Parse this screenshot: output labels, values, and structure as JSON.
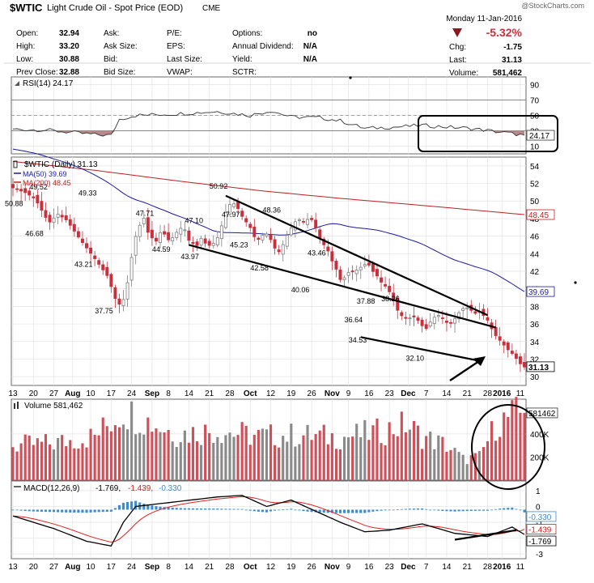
{
  "header": {
    "symbol": "$WTIC",
    "name": "Light Crude Oil - Spot Price (EOD)",
    "exchange": "CME",
    "watermark": "@StockCharts.com",
    "date": "Monday 11-Jan-2016",
    "change_pct": "-5.32%",
    "quote": [
      [
        "Open:",
        "32.94",
        "Ask:",
        "",
        "P/E:",
        "",
        "Options:",
        "no"
      ],
      [
        "High:",
        "33.20",
        "Ask Size:",
        "",
        "EPS:",
        "",
        "Annual Dividend:",
        "N/A"
      ],
      [
        "Low:",
        "30.88",
        "Bid:",
        "",
        "Last Size:",
        "",
        "Yield:",
        "N/A"
      ],
      [
        "Prev Close:",
        "32.88",
        "Bid Size:",
        "",
        "VWAP:",
        "",
        "SCTR:",
        ""
      ]
    ],
    "right_stats": [
      [
        "Chg:",
        "-1.75"
      ],
      [
        "Last:",
        "31.13"
      ],
      [
        "Volume:",
        "581,462"
      ]
    ]
  },
  "colors": {
    "up": "#7f7f7f",
    "down": "#c9303c",
    "rsi": "#333333",
    "ma50": "#1a1aa0",
    "ma200": "#c02020",
    "macd_hist": "#3d8cd0",
    "volume_up": "#8a8a8a",
    "volume_down": "#d0505a"
  },
  "chart_data": [
    {
      "type": "line",
      "panel": "rsi",
      "legend": "RSI(14) 24.17",
      "ylim": [
        0,
        100
      ],
      "yticks": [
        "90",
        "70",
        "50",
        "30",
        "10"
      ],
      "overbought": 70,
      "oversold": 30,
      "last_label": "24.17",
      "grid": true
    },
    {
      "type": "candlestick",
      "panel": "price",
      "legend": [
        "$WTIC (Daily) 31.13",
        "MA(50) 39.69",
        "MA(200) 48.45"
      ],
      "ylim": [
        29,
        55
      ],
      "yticks": [
        "54",
        "52",
        "50",
        "48",
        "46",
        "44",
        "42",
        "40",
        "38",
        "36",
        "34",
        "32",
        "30"
      ],
      "annotations": [
        "50.88",
        "49.52",
        "46.68",
        "49.33",
        "43.21",
        "37.75",
        "47.71",
        "44.59",
        "47.10",
        "43.97",
        "50.92",
        "47.97",
        "45.23",
        "48.36",
        "42.58",
        "43.46",
        "40.06",
        "37.88",
        "38.26",
        "36.64",
        "34.53",
        "32.10"
      ],
      "last_labels": [
        "48.45",
        "39.69",
        "31.13"
      ],
      "grid": true
    },
    {
      "type": "bar",
      "panel": "volume",
      "legend": "Volume 581,462",
      "yticks": [
        "400K",
        "200K"
      ],
      "last_label": "581462",
      "grid": true
    },
    {
      "type": "line",
      "panel": "macd",
      "legend": [
        "MACD(12,26,9)",
        "-1.769,",
        "-1.439,",
        "-0.330"
      ],
      "yticks": [
        "1",
        "0",
        "-1",
        "-2",
        "-3"
      ],
      "hist_label": "-0.330",
      "last_labels": [
        "-1.439",
        "-1.769"
      ],
      "grid": true
    },
    {
      "type": "axis",
      "x_labels": [
        "13",
        "20",
        "27",
        "Aug",
        "10",
        "17",
        "24",
        "Sep",
        "8",
        "14",
        "21",
        "28",
        "Oct",
        "12",
        "19",
        "26",
        "Nov",
        "9",
        "16",
        "23",
        "Dec",
        "7",
        "14",
        "21",
        "28",
        "2016",
        "11"
      ]
    }
  ]
}
